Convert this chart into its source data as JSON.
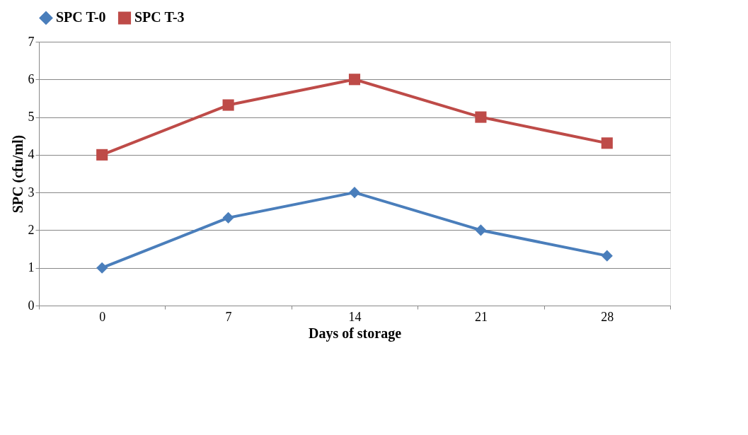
{
  "chart_data": {
    "type": "line",
    "xlabel": "Days of storage",
    "ylabel": "SPC (cfu/ml)",
    "categories": [
      "0",
      "7",
      "14",
      "21",
      "28"
    ],
    "series": [
      {
        "name": "SPC T-0",
        "color": "#4a7ebb",
        "marker": "diamond",
        "values": [
          1,
          2.33,
          3,
          2,
          1.32
        ]
      },
      {
        "name": "SPC T-3",
        "color": "#be4b48",
        "marker": "square",
        "values": [
          4,
          5.32,
          6,
          5,
          4.31
        ]
      }
    ],
    "ylim": [
      0,
      7
    ],
    "yticks": [
      0,
      1,
      2,
      3,
      4,
      5,
      6,
      7
    ],
    "grid": "y",
    "legend": "top",
    "line_style": "solid"
  }
}
